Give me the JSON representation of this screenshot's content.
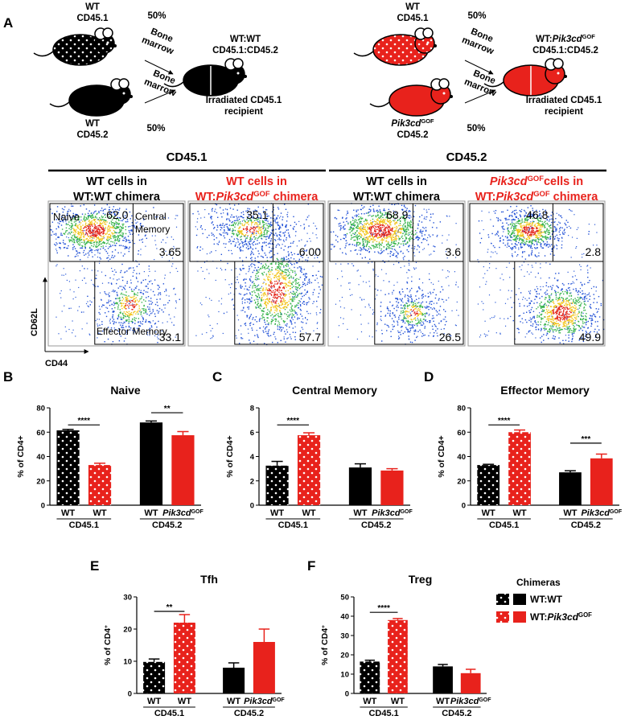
{
  "panel_a": {
    "label": "A",
    "left": [
      {
        "lines": [
          [
            {
              "t": "WT"
            }
          ],
          [
            {
              "t": "CD45.1"
            }
          ]
        ]
      },
      {
        "lines": [
          [
            {
              "t": "50%"
            }
          ]
        ]
      },
      {
        "lines": [
          [
            {
              "t": "Bone"
            }
          ],
          [
            {
              "t": "marrow"
            }
          ]
        ]
      },
      {
        "lines": [
          [
            {
              "t": "WT:WT"
            }
          ],
          [
            {
              "t": "CD45.1:CD45.2"
            }
          ]
        ]
      },
      {
        "lines": [
          [
            {
              "t": "Bone"
            }
          ],
          [
            {
              "t": "marrow"
            }
          ]
        ]
      },
      {
        "lines": [
          [
            {
              "t": "Irradiated CD45.1"
            }
          ],
          [
            {
              "t": "recipient"
            }
          ]
        ]
      },
      {
        "lines": [
          [
            {
              "t": "WT"
            }
          ],
          [
            {
              "t": "CD45.2"
            }
          ]
        ]
      },
      {
        "lines": [
          [
            {
              "t": "50%"
            }
          ]
        ]
      }
    ],
    "right": [
      {
        "lines": [
          [
            {
              "t": "WT"
            }
          ],
          [
            {
              "t": "CD45.1"
            }
          ]
        ]
      },
      {
        "lines": [
          [
            {
              "t": "50%"
            }
          ]
        ]
      },
      {
        "lines": [
          [
            {
              "t": "Bone"
            }
          ],
          [
            {
              "t": "marrow"
            }
          ]
        ]
      },
      {
        "lines": [
          [
            {
              "t": "WT:"
            },
            {
              "t": "Pik3cd",
              "i": true
            },
            {
              "t": "GOF",
              "sup": true
            }
          ],
          [
            {
              "t": "CD45.1:CD45.2"
            }
          ]
        ]
      },
      {
        "lines": [
          [
            {
              "t": "Bone"
            }
          ],
          [
            {
              "t": "marrow"
            }
          ]
        ]
      },
      {
        "lines": [
          [
            {
              "t": "Irradiated CD45.1"
            }
          ],
          [
            {
              "t": "recipient"
            }
          ]
        ]
      },
      {
        "lines": [
          [
            {
              "t": "Pik3cd",
              "i": true
            },
            {
              "t": "GOF",
              "sup": true
            }
          ],
          [
            {
              "t": "CD45.2"
            }
          ]
        ]
      },
      {
        "lines": [
          [
            {
              "t": "50%"
            }
          ]
        ]
      }
    ]
  },
  "flow": {
    "groups": [
      "CD45.1",
      "CD45.2"
    ],
    "columns": [
      {
        "red": false,
        "lines": [
          [
            {
              "t": "WT cells in"
            }
          ],
          [
            {
              "t": "WT:WT chimera"
            }
          ]
        ]
      },
      {
        "red": true,
        "lines": [
          [
            {
              "t": "WT cells in"
            }
          ],
          [
            {
              "t": "WT:"
            },
            {
              "t": "Pik3cd",
              "i": true
            },
            {
              "t": "GOF",
              "sup": true
            },
            {
              "t": " chimera"
            }
          ]
        ]
      },
      {
        "red": false,
        "lines": [
          [
            {
              "t": "WT cells in"
            }
          ],
          [
            {
              "t": "WT:WT chimera"
            }
          ]
        ]
      },
      {
        "red": true,
        "lines": [
          [
            {
              "t": "Pik3cd",
              "i": true
            },
            {
              "t": "GOF",
              "sup": true
            },
            {
              "t": "cells in"
            }
          ],
          [
            {
              "t": "WT:"
            },
            {
              "t": "Pik3cd",
              "i": true
            },
            {
              "t": "GOF",
              "sup": true
            },
            {
              "t": " chimera"
            }
          ]
        ]
      }
    ],
    "gates": [
      [
        "62.0",
        "3.65",
        "33.1"
      ],
      [
        "35.1",
        "6.00",
        "57.7"
      ],
      [
        "68.9",
        "3.6",
        "26.5"
      ],
      [
        "46.8",
        "2.8",
        "49.9"
      ]
    ],
    "labels": {
      "naive": "Naive",
      "central": [
        "Central",
        "Memory"
      ],
      "effector": "Effector Memory",
      "yaxis": "CD62L",
      "xaxis": "CD44"
    }
  },
  "chart_data": [
    {
      "type": "bar",
      "label": "B",
      "title": "Naive",
      "ylabel": [
        {
          "t": "% of CD4+"
        }
      ],
      "categories": [
        "WT",
        "WT",
        "WT",
        "Pik3cd"
      ],
      "category_superscript": "GOF",
      "group_labels": [
        "CD45.1",
        "CD45.2"
      ],
      "values": [
        61.5,
        33,
        68,
        57.5
      ],
      "errors": [
        0.8,
        1.5,
        1.2,
        3
      ],
      "colors": [
        "#000000",
        "#e8221c",
        "#000000",
        "#e8221c"
      ],
      "dotted": [
        true,
        true,
        false,
        false
      ],
      "ylim": [
        0,
        80
      ],
      "yticks": [
        0,
        20,
        40,
        60,
        80
      ],
      "significance": [
        {
          "from": 0,
          "to": 1,
          "y": 66,
          "label": "****"
        },
        {
          "from": 2,
          "to": 3,
          "y": 76,
          "label": "**"
        }
      ]
    },
    {
      "type": "bar",
      "label": "C",
      "title": "Central Memory",
      "ylabel": [
        {
          "t": "% of CD4+"
        }
      ],
      "categories": [
        "WT",
        "WT",
        "WT",
        "Pik3cd"
      ],
      "category_superscript": "GOF",
      "group_labels": [
        "CD45.1",
        "CD45.2"
      ],
      "values": [
        3.25,
        5.75,
        3.1,
        2.85
      ],
      "errors": [
        0.35,
        0.2,
        0.3,
        0.15
      ],
      "colors": [
        "#000000",
        "#e8221c",
        "#000000",
        "#e8221c"
      ],
      "dotted": [
        true,
        true,
        false,
        false
      ],
      "ylim": [
        0,
        8
      ],
      "yticks": [
        0,
        2,
        4,
        6,
        8
      ],
      "significance": [
        {
          "from": 0,
          "to": 1,
          "y": 6.6,
          "label": "****"
        }
      ]
    },
    {
      "type": "bar",
      "label": "D",
      "title": "Effector Memory",
      "ylabel": [
        {
          "t": "% of CD4+"
        }
      ],
      "categories": [
        "WT",
        "WT",
        "WT",
        "Pik3cd"
      ],
      "category_superscript": "GOF",
      "group_labels": [
        "CD45.1",
        "CD45.2"
      ],
      "values": [
        33,
        60,
        27,
        38.5
      ],
      "errors": [
        0.6,
        1.8,
        1.3,
        3.5
      ],
      "colors": [
        "#000000",
        "#e8221c",
        "#000000",
        "#e8221c"
      ],
      "dotted": [
        true,
        true,
        false,
        false
      ],
      "ylim": [
        0,
        80
      ],
      "yticks": [
        0,
        20,
        40,
        60,
        80
      ],
      "significance": [
        {
          "from": 0,
          "to": 1,
          "y": 66,
          "label": "****"
        },
        {
          "from": 2,
          "to": 3,
          "y": 51,
          "label": "***"
        }
      ]
    },
    {
      "type": "bar",
      "label": "E",
      "title": "Tfh",
      "ylabel": [
        {
          "t": "% of CD4"
        },
        {
          "t": "+",
          "sup": true
        }
      ],
      "categories": [
        "WT",
        "WT",
        "WT",
        "Pik3cd"
      ],
      "category_superscript": "GOF",
      "group_labels": [
        "CD45.1",
        "CD45.2"
      ],
      "values": [
        9.8,
        22,
        8,
        16
      ],
      "errors": [
        0.9,
        2.5,
        1.5,
        4
      ],
      "colors": [
        "#000000",
        "#e8221c",
        "#000000",
        "#e8221c"
      ],
      "dotted": [
        true,
        true,
        false,
        false
      ],
      "ylim": [
        0,
        30
      ],
      "yticks": [
        0,
        10,
        20,
        30
      ],
      "significance": [
        {
          "from": 0,
          "to": 1,
          "y": 25.5,
          "label": "**"
        }
      ]
    },
    {
      "type": "bar",
      "label": "F",
      "title": "Treg",
      "ylabel": [
        {
          "t": "% of CD4"
        },
        {
          "t": "+",
          "sup": true
        }
      ],
      "categories": [
        "WT",
        "WT",
        "WT",
        "Pik3cd"
      ],
      "category_superscript": "GOF",
      "group_labels": [
        "CD45.1",
        "CD45.2"
      ],
      "values": [
        16.5,
        38,
        14,
        10.5
      ],
      "errors": [
        0.7,
        0.8,
        1,
        2
      ],
      "colors": [
        "#000000",
        "#e8221c",
        "#000000",
        "#e8221c"
      ],
      "dotted": [
        true,
        true,
        false,
        false
      ],
      "ylim": [
        0,
        50
      ],
      "yticks": [
        0,
        10,
        20,
        30,
        40,
        50
      ],
      "significance": [
        {
          "from": 0,
          "to": 1,
          "y": 42,
          "label": "****"
        }
      ],
      "legend": {
        "title": "Chimeras",
        "entries": [
          [
            {
              "t": "WT:WT"
            }
          ],
          [
            {
              "t": "WT:"
            },
            {
              "t": "Pik3cd",
              "i": true
            },
            {
              "t": "GOF",
              "sup": true
            }
          ]
        ]
      }
    }
  ]
}
